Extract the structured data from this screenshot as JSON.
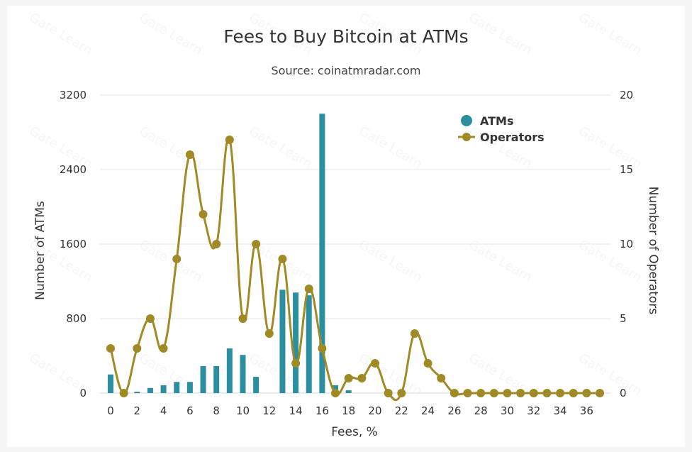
{
  "chart_data": {
    "type": "bar+line",
    "title": "Fees to Buy Bitcoin at ATMs",
    "subtitle": "Source: coinatmradar.com",
    "xlabel": "Fees, %",
    "ylabel_left": "Number of ATMs",
    "ylabel_right": "Number of Operators",
    "x": [
      0,
      1,
      2,
      3,
      4,
      5,
      6,
      7,
      8,
      9,
      10,
      11,
      12,
      13,
      14,
      15,
      16,
      17,
      18,
      19,
      20,
      21,
      22,
      23,
      24,
      25,
      26,
      27,
      28,
      29,
      30,
      31,
      32,
      33,
      34,
      35,
      36,
      37
    ],
    "x_tick_labels": [
      "0",
      "2",
      "4",
      "6",
      "8",
      "10",
      "12",
      "14",
      "16",
      "18",
      "20",
      "22",
      "24",
      "26",
      "28",
      "30",
      "32",
      "34",
      "36"
    ],
    "ylim_left": [
      0,
      3200
    ],
    "yticks_left": [
      "0",
      "800",
      "1600",
      "2400",
      "3200"
    ],
    "ylim_right": [
      0,
      20
    ],
    "yticks_right": [
      "0",
      "5",
      "10",
      "15",
      "20"
    ],
    "grid": true,
    "legend_position": "top-right",
    "series": [
      {
        "name": "ATMs",
        "kind": "bar",
        "axis": "left",
        "color": "#2b8fa0",
        "values": [
          200,
          0,
          15,
          55,
          85,
          120,
          120,
          290,
          290,
          480,
          410,
          175,
          0,
          1110,
          1080,
          1050,
          3000,
          85,
          30,
          0,
          0,
          0,
          0,
          0,
          0,
          0,
          0,
          0,
          0,
          0,
          0,
          0,
          0,
          0,
          0,
          0,
          0,
          0
        ]
      },
      {
        "name": "Operators",
        "kind": "line",
        "axis": "right",
        "color": "#a08a24",
        "values": [
          3,
          0,
          3,
          5,
          3,
          9,
          16,
          12,
          10,
          17,
          5,
          10,
          4,
          9,
          2,
          7,
          3,
          0,
          1,
          1,
          2,
          0,
          0,
          4,
          2,
          1,
          0,
          0,
          0,
          0,
          0,
          0,
          0,
          0,
          0,
          0,
          0,
          0
        ]
      }
    ]
  },
  "watermark_text": "Gate Learn"
}
